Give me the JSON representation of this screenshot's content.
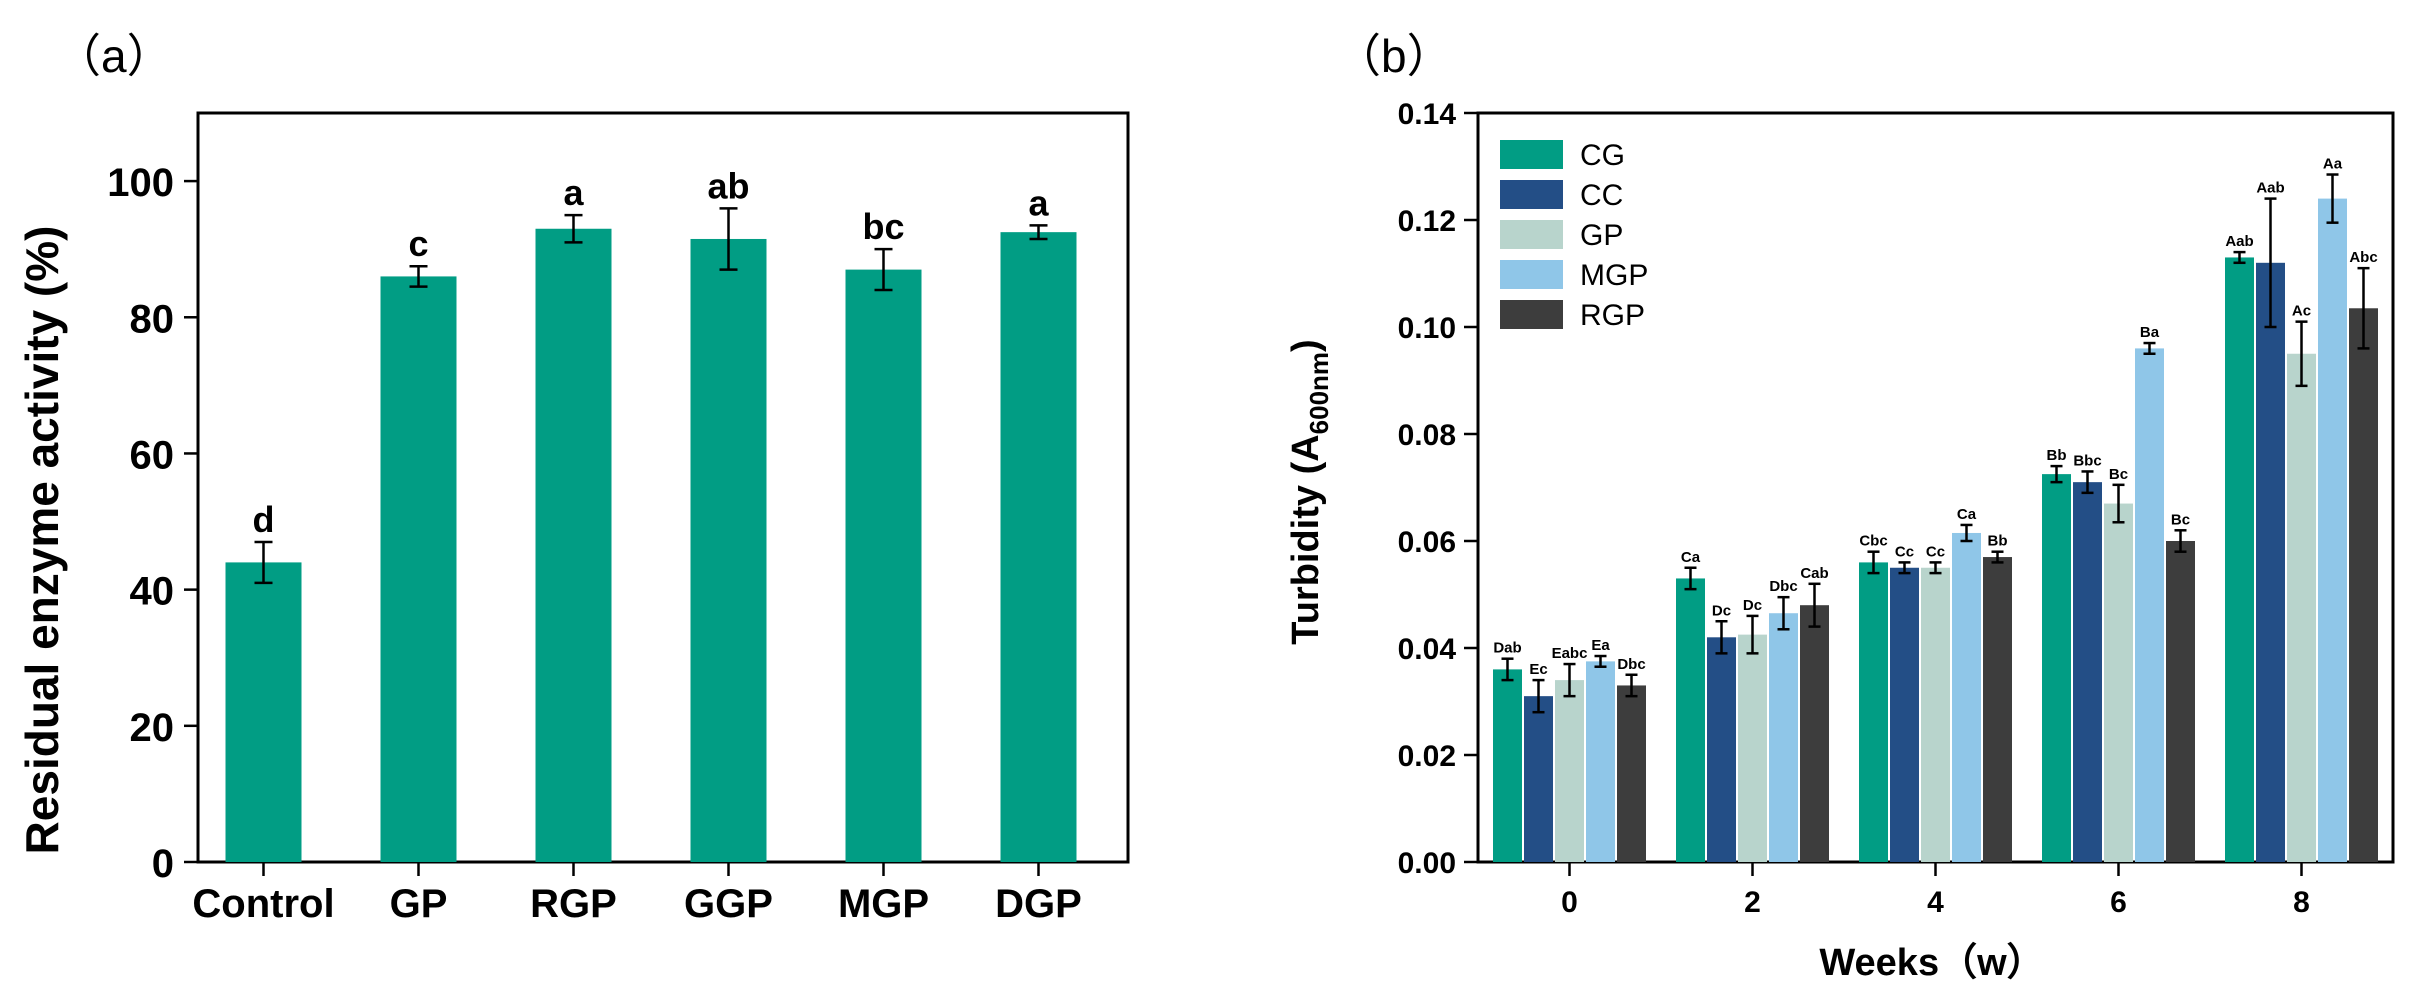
{
  "chart_data": [
    {
      "type": "bar",
      "panel_label": "（a）",
      "title": "",
      "xlabel": "",
      "ylabel": "Residual enzyme activity  (%)",
      "ylim": [
        0,
        110
      ],
      "yticks": [
        0,
        20,
        40,
        60,
        80,
        100
      ],
      "categories": [
        "Control",
        "GP",
        "RGP",
        "GGP",
        "MGP",
        "DGP"
      ],
      "values": [
        44,
        86,
        93,
        91.5,
        87,
        92.5
      ],
      "errors": [
        3,
        1.5,
        2,
        4.5,
        3,
        1
      ],
      "letters": [
        "d",
        "c",
        "a",
        "ab",
        "bc",
        "a"
      ],
      "color": "#019d84"
    },
    {
      "type": "bar",
      "panel_label": "（b）",
      "title": "",
      "xlabel": "Weeks（w）",
      "ylabel_main": "Turbidity (A",
      "ylabel_sub": "600nm",
      "ylabel_end": ")",
      "ylim": [
        0,
        0.14
      ],
      "yticks": [
        "0.00",
        "0.02",
        "0.04",
        "0.06",
        "0.08",
        "0.10",
        "0.12",
        "0.14"
      ],
      "categories": [
        "0",
        "2",
        "4",
        "6",
        "8"
      ],
      "legend_position": "top-left",
      "series": [
        {
          "name": "CG",
          "color": "#019d84",
          "values": [
            0.036,
            0.053,
            0.056,
            0.0725,
            0.113
          ],
          "errors": [
            0.002,
            0.002,
            0.002,
            0.0015,
            0.001
          ],
          "letters": [
            "Dab",
            "Ca",
            "Cbc",
            "Bb",
            "Aab"
          ]
        },
        {
          "name": "CC",
          "color": "#234e86",
          "values": [
            0.031,
            0.042,
            0.055,
            0.071,
            0.112
          ],
          "errors": [
            0.003,
            0.003,
            0.001,
            0.002,
            0.012
          ],
          "letters": [
            "Ec",
            "Dc",
            "Cc",
            "Bbc",
            "Aab"
          ]
        },
        {
          "name": "GP",
          "color": "#b8d4cc",
          "values": [
            0.034,
            0.0425,
            0.055,
            0.067,
            0.095
          ],
          "errors": [
            0.003,
            0.0035,
            0.001,
            0.0035,
            0.006
          ],
          "letters": [
            "Eabc",
            "Dc",
            "Cc",
            "Bc",
            "Ac"
          ]
        },
        {
          "name": "MGP",
          "color": "#8fc6e8",
          "values": [
            0.0375,
            0.0465,
            0.0615,
            0.096,
            0.124
          ],
          "errors": [
            0.001,
            0.003,
            0.0015,
            0.001,
            0.0045
          ],
          "letters": [
            "Ea",
            "Dbc",
            "Ca",
            "Ba",
            "Aa"
          ]
        },
        {
          "name": "RGP",
          "color": "#3d3d3d",
          "values": [
            0.033,
            0.048,
            0.057,
            0.06,
            0.1035
          ],
          "errors": [
            0.002,
            0.004,
            0.001,
            0.002,
            0.0075
          ],
          "letters": [
            "Dbc",
            "Cab",
            "Bb",
            "Bc",
            "Abc"
          ]
        }
      ]
    }
  ]
}
